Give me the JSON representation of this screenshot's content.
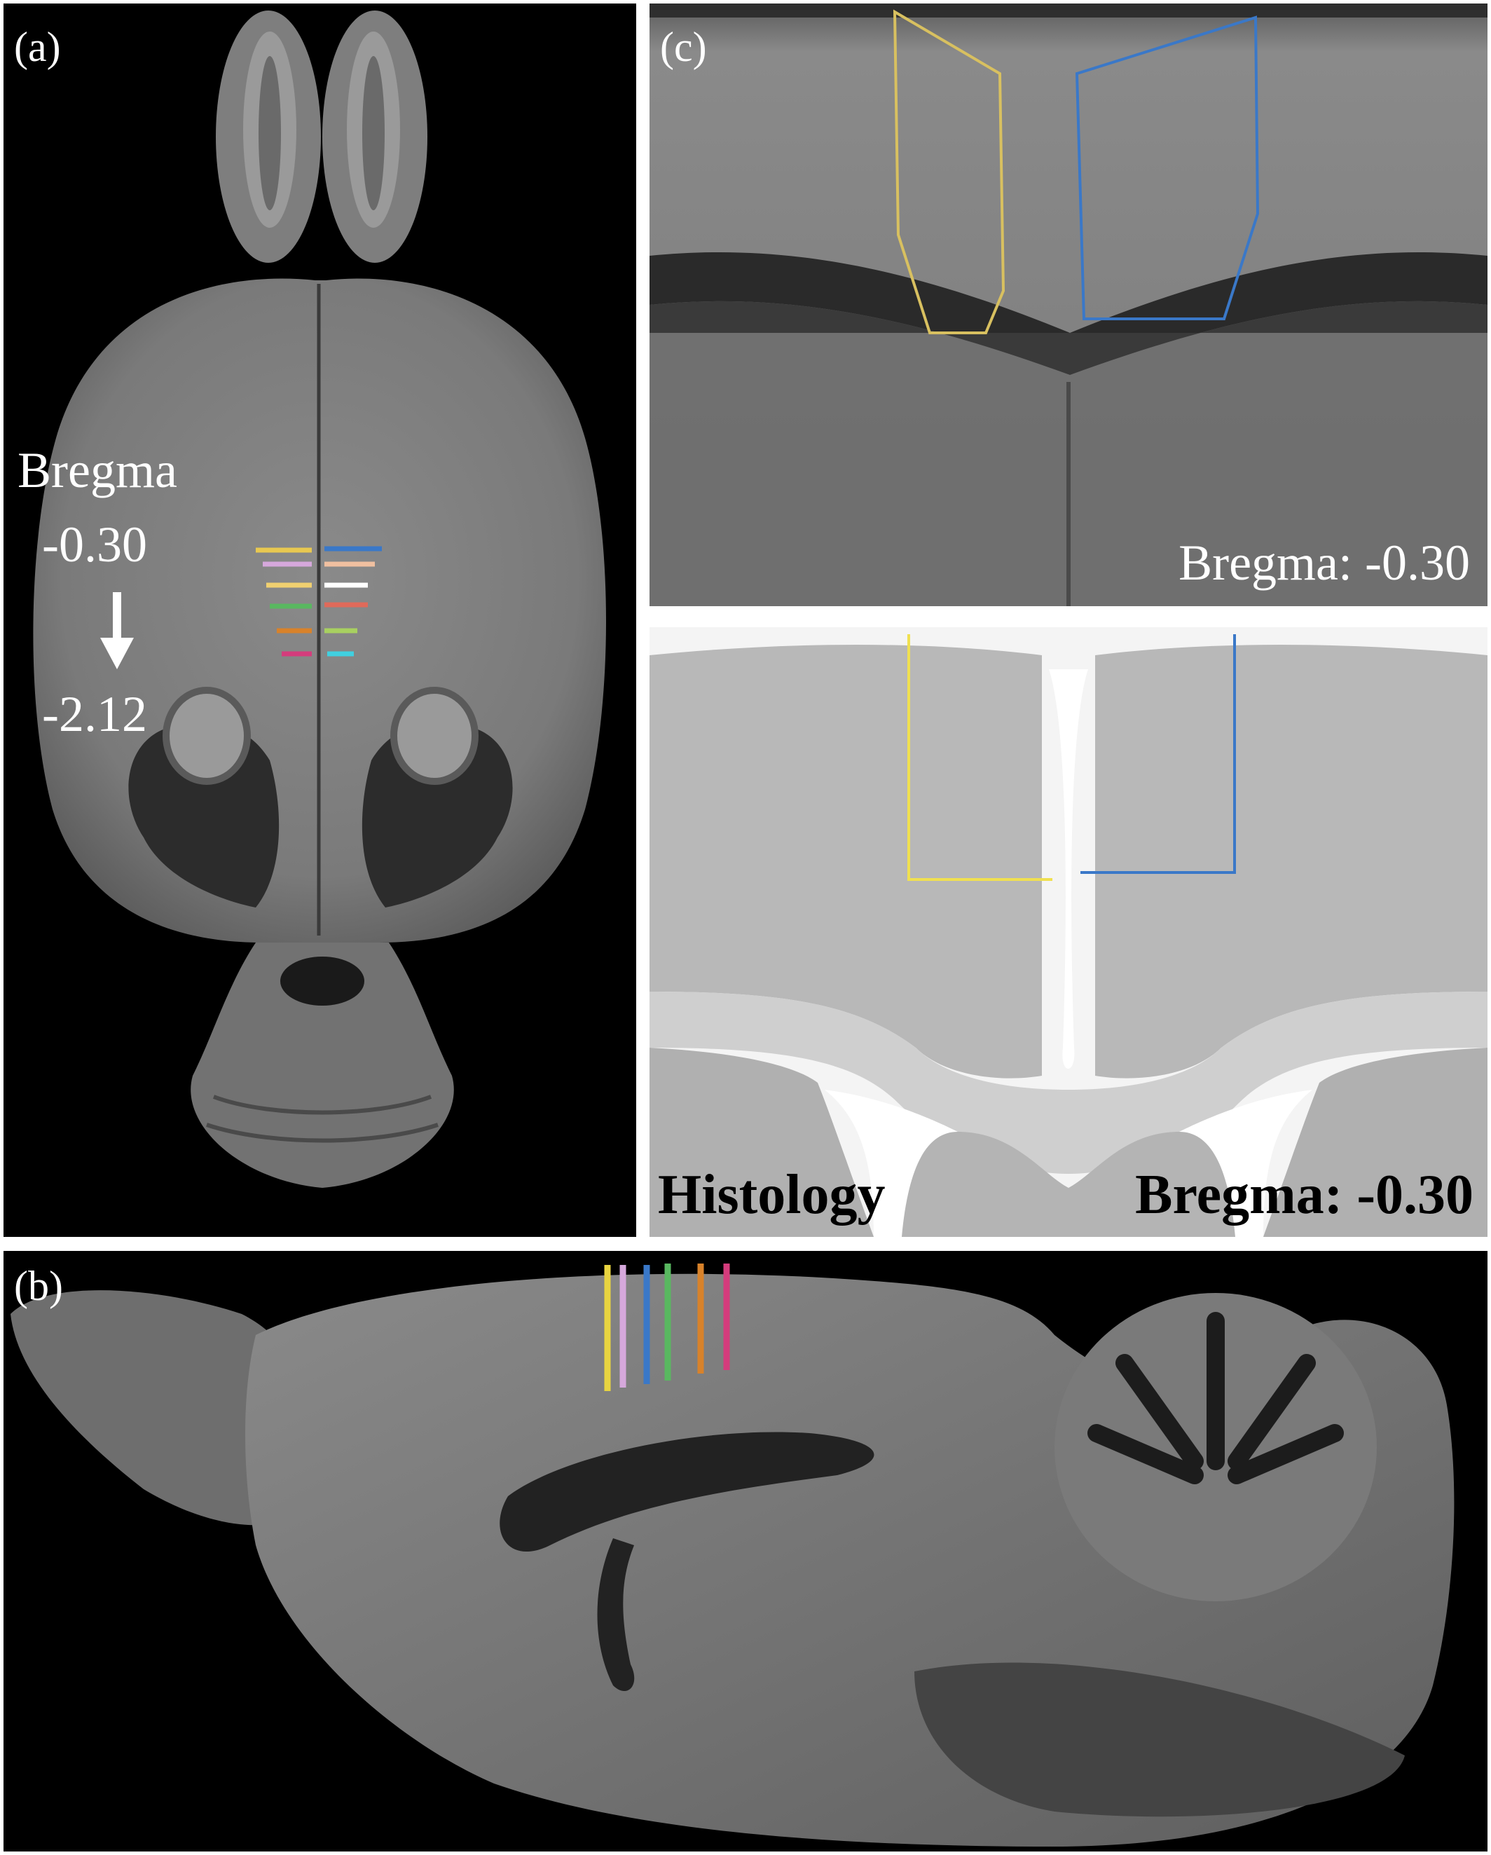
{
  "panel_a": {
    "label": "(a)",
    "bregma_word": "Bregma",
    "bregma_start": "-0.30",
    "bregma_end": "-2.12",
    "arrow_icon": "arrow-down-icon",
    "slice_colors": [
      "#e8c850",
      "#d6a8dc",
      "#f0d070",
      "#59b860",
      "#d8822a",
      "#d43c7c"
    ],
    "slice_colors_right": [
      "#3a78c8",
      "#f0c0a0",
      "#ffffff",
      "#e06a5a",
      "#a8d060",
      "#40d0e0"
    ]
  },
  "panel_b": {
    "label": "(b)",
    "slice_colors": [
      "#e8d440",
      "#d6a8dc",
      "#3a78c8",
      "#59b860",
      "#d8822a",
      "#d43c7c"
    ]
  },
  "panel_c_mri": {
    "label": "(c)",
    "bregma_text": "Bregma:  -0.30",
    "roi_left_color": "#d8c060",
    "roi_right_color": "#3a78c8"
  },
  "panel_c_histology": {
    "histology_label": "Histology",
    "bregma_text": "Bregma: -0.30",
    "roi_left_color": "#f0e050",
    "roi_right_color": "#3a78c8"
  }
}
